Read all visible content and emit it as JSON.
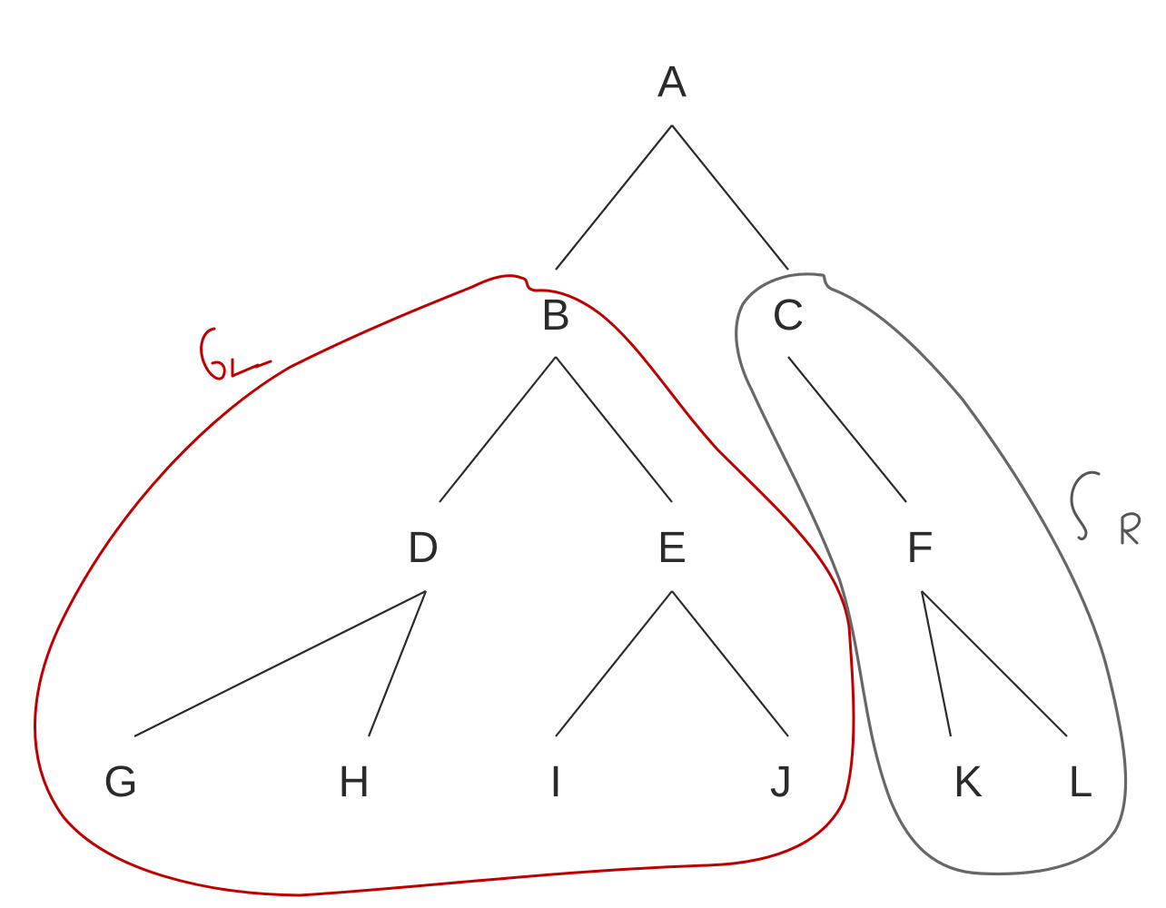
{
  "tree": {
    "nodes": {
      "A": "A",
      "B": "B",
      "C": "C",
      "D": "D",
      "E": "E",
      "F": "F",
      "G": "G",
      "H": "H",
      "I": "I",
      "J": "J",
      "K": "K",
      "L": "L"
    },
    "edges": [
      [
        "A",
        "B"
      ],
      [
        "A",
        "C"
      ],
      [
        "B",
        "D"
      ],
      [
        "B",
        "E"
      ],
      [
        "C",
        "F"
      ],
      [
        "D",
        "G"
      ],
      [
        "D",
        "H"
      ],
      [
        "E",
        "I"
      ],
      [
        "E",
        "J"
      ],
      [
        "F",
        "K"
      ],
      [
        "F",
        "L"
      ]
    ]
  },
  "annotations": {
    "left_subtree": {
      "label": "S_L",
      "color": "#c00000",
      "members": [
        "B",
        "D",
        "E",
        "G",
        "H",
        "I",
        "J"
      ]
    },
    "right_subtree": {
      "label": "S_R",
      "color": "#676767",
      "members": [
        "C",
        "F",
        "K",
        "L"
      ]
    }
  }
}
